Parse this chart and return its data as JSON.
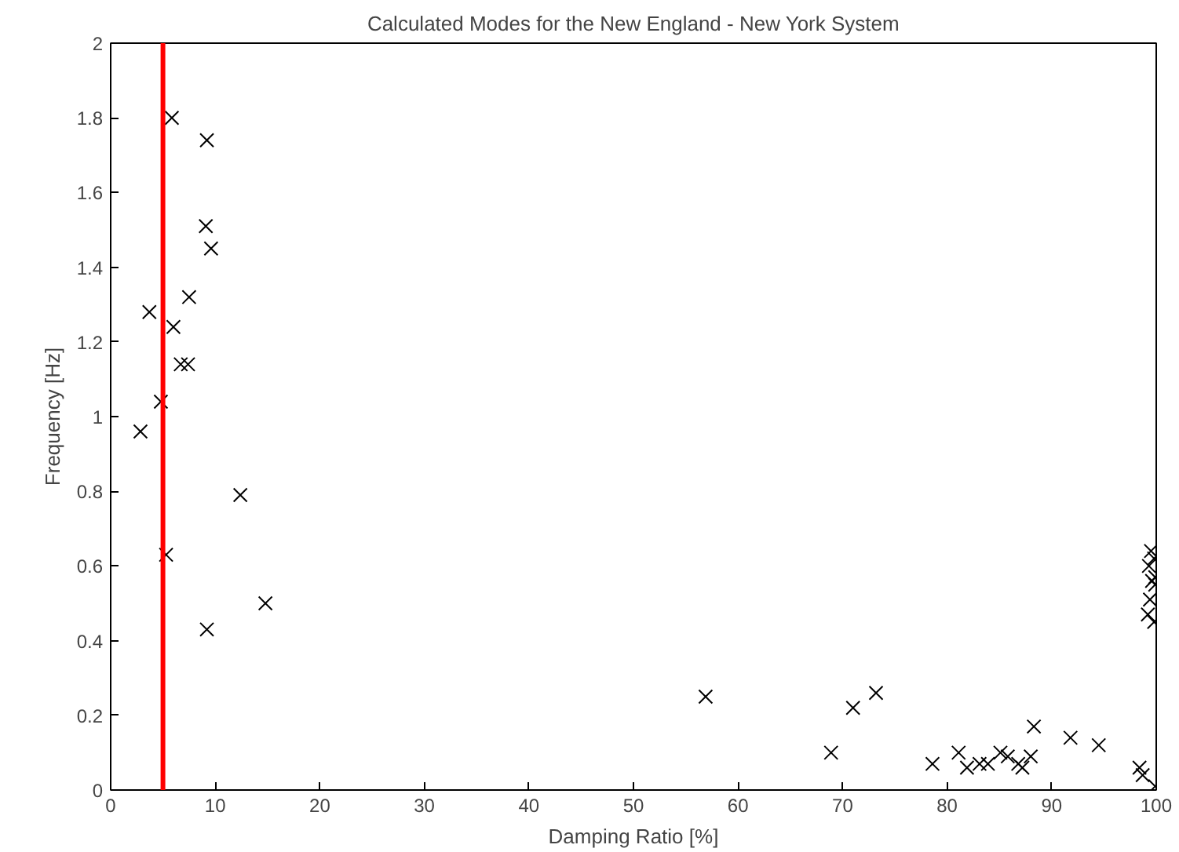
{
  "chart_data": {
    "type": "scatter",
    "title": "Calculated Modes for the New England - New York System",
    "xlabel": "Damping Ratio [%]",
    "ylabel": "Frequency [Hz]",
    "x": [
      5.85,
      9.2,
      9.1,
      9.6,
      7.5,
      3.7,
      6.0,
      6.7,
      7.4,
      4.8,
      2.85,
      12.4,
      5.3,
      14.8,
      9.2,
      56.9,
      68.9,
      71.0,
      73.2,
      78.6,
      81.1,
      81.9,
      83.1,
      83.9,
      85.1,
      85.8,
      86.8,
      87.2,
      88.0,
      88.3,
      91.8,
      94.5,
      98.4,
      98.7,
      99.9,
      99.5,
      99.8,
      99.3,
      99.9,
      99.6,
      99.9,
      99.4,
      99.2,
      99.8
    ],
    "series": [
      {
        "color": "#000000",
        "values": [
          1.8,
          1.74,
          1.51,
          1.45,
          1.32,
          1.28,
          1.24,
          1.14,
          1.14,
          1.04,
          0.96,
          0.79,
          0.63,
          0.5,
          0.43,
          0.25,
          0.1,
          0.22,
          0.26,
          0.07,
          0.1,
          0.06,
          0.07,
          0.07,
          0.1,
          0.09,
          0.07,
          0.06,
          0.09,
          0.17,
          0.14,
          0.12,
          0.06,
          0.04,
          0.01,
          0.64,
          0.62,
          0.6,
          0.57,
          0.56,
          0.55,
          0.51,
          0.47,
          0.45
        ]
      }
    ],
    "marker": "cross",
    "xlim": [
      0,
      100
    ],
    "ylim": [
      0,
      2
    ],
    "xticks": [
      0,
      10,
      20,
      30,
      40,
      50,
      60,
      70,
      80,
      90,
      100
    ],
    "yticks": [
      0,
      0.2,
      0.4,
      0.6,
      0.8,
      1,
      1.2,
      1.4,
      1.6,
      1.8,
      2
    ],
    "ref_lines": [
      {
        "axis": "x",
        "value": 5,
        "color": "#ff0000"
      }
    ],
    "grid": false
  }
}
